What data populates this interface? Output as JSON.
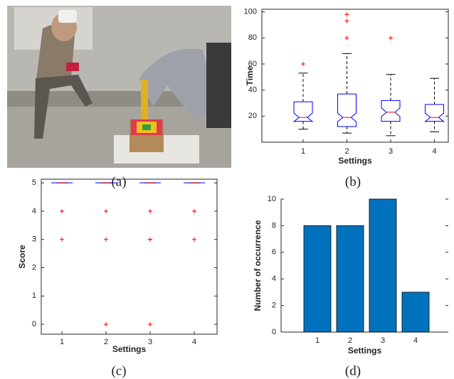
{
  "figure_a": {
    "caption": "(a)"
  },
  "chart_data": [
    {
      "type": "box",
      "caption": "(b)",
      "xlabel": "Settings",
      "ylabel": "Time",
      "categories": [
        "1",
        "2",
        "3",
        "4"
      ],
      "boxes": [
        {
          "low": 10,
          "q1": 16,
          "median": 19,
          "q3": 31,
          "high": 53,
          "outliers": [
            60
          ]
        },
        {
          "low": 7,
          "q1": 12,
          "median": 19,
          "q3": 37,
          "high": 68,
          "outliers": [
            80,
            93,
            98
          ]
        },
        {
          "low": 5,
          "q1": 16,
          "median": 23,
          "q3": 32,
          "high": 52,
          "outliers": [
            80
          ]
        },
        {
          "low": 8,
          "q1": 16,
          "median": 19,
          "q3": 29,
          "high": 49,
          "outliers": []
        }
      ],
      "box_color": "#0000ff",
      "median_color": "#ff0000",
      "outlier_color": "#ff0000",
      "ylim": [
        0,
        102
      ],
      "yticks": [
        20,
        40,
        60,
        80,
        100
      ]
    },
    {
      "type": "box",
      "caption": "(c)",
      "xlabel": "Settings",
      "ylabel": "Score",
      "categories": [
        "1",
        "2",
        "3",
        "4"
      ],
      "boxes": [
        {
          "low": 5,
          "q1": 5,
          "median": 5,
          "q3": 5,
          "high": 5,
          "outliers": [
            4,
            4,
            3
          ]
        },
        {
          "low": 5,
          "q1": 5,
          "median": 5,
          "q3": 5,
          "high": 5,
          "outliers": [
            4,
            4,
            3,
            0
          ]
        },
        {
          "low": 5,
          "q1": 5,
          "median": 5,
          "q3": 5,
          "high": 5,
          "outliers": [
            4,
            4,
            3,
            3,
            0
          ]
        },
        {
          "low": 5,
          "q1": 5,
          "median": 5,
          "q3": 5,
          "high": 5,
          "outliers": [
            4,
            3
          ]
        }
      ],
      "box_color": "#0000ff",
      "median_color": "#ff0000",
      "outlier_color": "#ff0000",
      "ylim": [
        -0.35,
        5.13
      ],
      "yticks": [
        0,
        1,
        2,
        3,
        4,
        5
      ]
    },
    {
      "type": "bar",
      "caption": "(d)",
      "xlabel": "Settings",
      "ylabel": "Number of occurrence",
      "categories": [
        "1",
        "2",
        "3",
        "4"
      ],
      "values": [
        8,
        8,
        10,
        3
      ],
      "color": "#0072bd",
      "ylim": [
        0,
        10
      ],
      "yticks": [
        0,
        2,
        4,
        6,
        8,
        10
      ]
    }
  ]
}
